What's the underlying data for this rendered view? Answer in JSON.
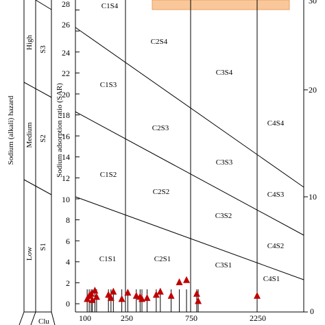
{
  "chart_data": {
    "type": "scatter",
    "ylabel": "Sodium adsorption ratio (SAR)",
    "left_label": "Sodium (alkali) hazard",
    "hazard_levels": [
      "Low",
      "Medium",
      "High"
    ],
    "hazard_classes": [
      "S1",
      "S2",
      "S3"
    ],
    "bottom_partial_label": "Clu",
    "x_ticks": [
      "100",
      "250",
      "750",
      "2250"
    ],
    "y_ticks": [
      "0",
      "2",
      "4",
      "6",
      "8",
      "10",
      "12",
      "14",
      "16",
      "18",
      "20",
      "22",
      "24",
      "26",
      "28"
    ],
    "right_ticks": [
      "0",
      "10",
      "20",
      "30"
    ],
    "zones": [
      "C1S4",
      "C2S4",
      "C1S3",
      "C3S4",
      "C2S3",
      "C4S4",
      "C3S3",
      "C1S2",
      "C2S2",
      "C4S3",
      "C3S2",
      "C4S2",
      "C1S1",
      "C2S1",
      "C3S1",
      "C4S1"
    ],
    "legend_box_color": "#f9c79a",
    "marker_color": "#c00000",
    "points": [
      {
        "x": 105,
        "y": 0.5
      },
      {
        "x": 110,
        "y": 0.8
      },
      {
        "x": 115,
        "y": 1.0
      },
      {
        "x": 118,
        "y": 0.4
      },
      {
        "x": 125,
        "y": 1.3
      },
      {
        "x": 130,
        "y": 0.7
      },
      {
        "x": 170,
        "y": 0.9
      },
      {
        "x": 180,
        "y": 0.6
      },
      {
        "x": 190,
        "y": 1.2
      },
      {
        "x": 230,
        "y": 0.5
      },
      {
        "x": 260,
        "y": 1.1
      },
      {
        "x": 300,
        "y": 0.8
      },
      {
        "x": 320,
        "y": 0.7
      },
      {
        "x": 330,
        "y": 0.5
      },
      {
        "x": 360,
        "y": 0.6
      },
      {
        "x": 420,
        "y": 0.9
      },
      {
        "x": 450,
        "y": 1.2
      },
      {
        "x": 540,
        "y": 0.8
      },
      {
        "x": 620,
        "y": 2.1
      },
      {
        "x": 700,
        "y": 2.3
      },
      {
        "x": 830,
        "y": 1.0
      },
      {
        "x": 850,
        "y": 0.3
      },
      {
        "x": 2250,
        "y": 0.8
      }
    ]
  }
}
